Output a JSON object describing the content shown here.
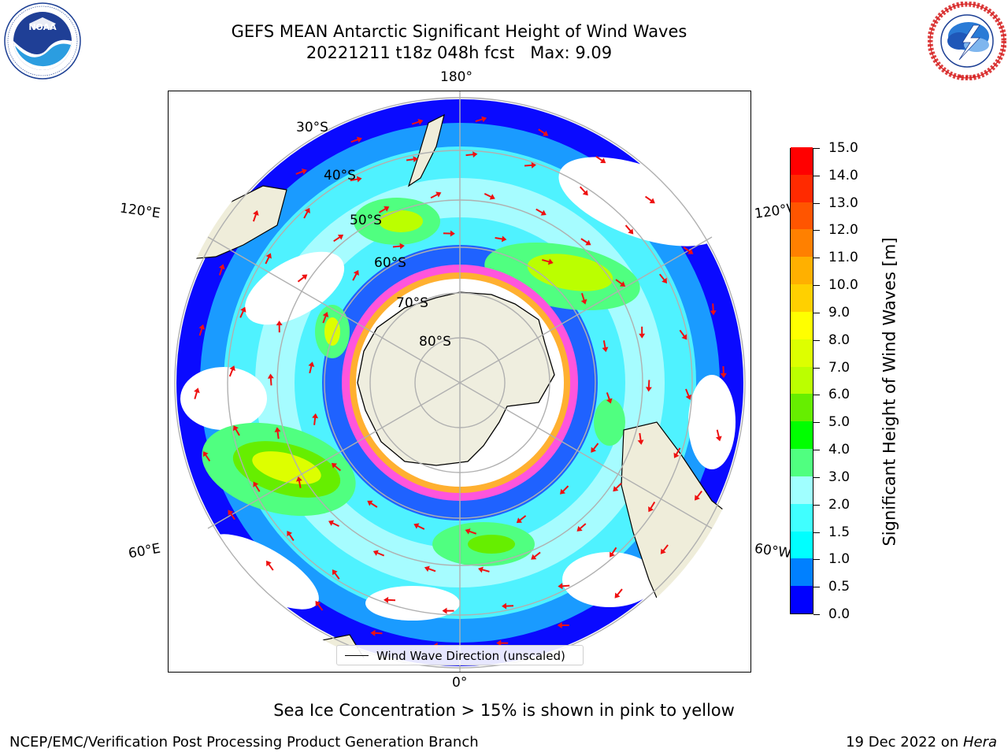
{
  "title": {
    "line1": "GEFS MEAN Antarctic Significant Height of Wind Waves",
    "line2": "20221211 t18z 048h fcst   Max: 9.09"
  },
  "logos": {
    "noaa_text": "NOAA",
    "noaa_ring_text": "NATIONAL OCEANIC AND ATMOSPHERIC ADMINISTRATION · U.S. DEPARTMENT OF COMMERCE",
    "nws_ring_text": "NATIONAL WEATHER SERVICE"
  },
  "map": {
    "projection": "south-polar-stereographic",
    "longitude_labels": {
      "top": "180°",
      "bottom": "0°",
      "upper_left": "120°E",
      "lower_left": "60°E",
      "upper_right": "120°W",
      "lower_right": "60°W"
    },
    "latitude_labels": [
      "30°S",
      "40°S",
      "50°S",
      "60°S",
      "70°S",
      "80°S"
    ],
    "legend_label": "Wind Wave Direction (unscaled)",
    "arrow_color": "#ee1111",
    "land_color": "#efedda",
    "antarctica_color": "#efeedf"
  },
  "colorbar": {
    "title": "Significant Height of Wind Waves [m]",
    "levels": [
      "0.0",
      "0.5",
      "1.0",
      "1.5",
      "2.0",
      "3.0",
      "4.0",
      "5.0",
      "6.0",
      "7.0",
      "8.0",
      "9.0",
      "10.0",
      "11.0",
      "12.0",
      "13.0",
      "14.0",
      "15.0"
    ],
    "colors": [
      "#0000ff",
      "#0080ff",
      "#00ffff",
      "#40ffff",
      "#a0ffff",
      "#50ff80",
      "#00ff00",
      "#66ee00",
      "#bbff00",
      "#ddff00",
      "#ffff00",
      "#ffd000",
      "#ffb000",
      "#ff8000",
      "#ff5500",
      "#ff2a00",
      "#ff0000"
    ]
  },
  "sea_ice_note": "Sea Ice Concentration > 15% is shown in pink to yellow",
  "footer": {
    "left": "NCEP/EMC/Verification Post Processing Product Generation Branch",
    "right_prefix": "19 Dec 2022 on ",
    "right_italic": "Hera"
  }
}
